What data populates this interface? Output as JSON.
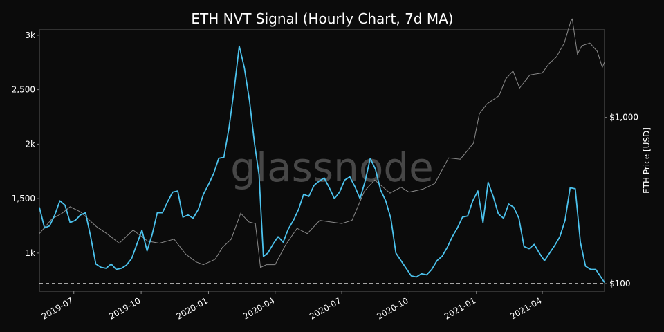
{
  "chart_data": {
    "type": "line",
    "title": "ETH NVT Signal (Hourly Chart, 7d MA)",
    "watermark": "glassnode",
    "xlabel": "",
    "ylabel_left": "",
    "ylabel_right": "ETH Price [USD]",
    "x_range": [
      "2019-05-15",
      "2021-06-25"
    ],
    "x_tick_labels": [
      "2019-07",
      "2019-10",
      "2020-01",
      "2020-04",
      "2020-07",
      "2020-10",
      "2021-01",
      "2021-04"
    ],
    "x_tick_dates": [
      "2019-07-01",
      "2019-10-01",
      "2020-01-01",
      "2020-04-01",
      "2020-07-01",
      "2020-10-01",
      "2021-01-01",
      "2021-04-01"
    ],
    "y_left": {
      "range": [
        650,
        3050
      ],
      "tick_values": [
        1000,
        1500,
        2000,
        2500,
        3000
      ],
      "tick_labels": [
        "1k",
        "1,500",
        "2k",
        "2,500",
        "3k"
      ]
    },
    "y_right": {
      "scale": "log",
      "range": [
        100,
        3000
      ],
      "tick_values": [
        100,
        1000
      ],
      "tick_labels": [
        "$100",
        "$1,000"
      ]
    },
    "threshold_line": {
      "value": 720,
      "style": "dashed",
      "color": "#ffffff"
    },
    "grid": false,
    "colors": {
      "nvt": "#4cc3ee",
      "price": "#8a8a8a",
      "background": "#0b0b0b",
      "axes": "#555555"
    },
    "series": [
      {
        "axis": "left",
        "color": "#4cc3ee",
        "x": [
          "2019-05-15",
          "2019-05-22",
          "2019-05-29",
          "2019-06-05",
          "2019-06-12",
          "2019-06-19",
          "2019-06-26",
          "2019-07-03",
          "2019-07-10",
          "2019-07-17",
          "2019-07-24",
          "2019-07-31",
          "2019-08-07",
          "2019-08-14",
          "2019-08-21",
          "2019-08-28",
          "2019-09-04",
          "2019-09-11",
          "2019-09-18",
          "2019-09-25",
          "2019-10-02",
          "2019-10-09",
          "2019-10-16",
          "2019-10-23",
          "2019-10-30",
          "2019-11-06",
          "2019-11-13",
          "2019-11-20",
          "2019-11-27",
          "2019-12-04",
          "2019-12-11",
          "2019-12-18",
          "2019-12-25",
          "2020-01-01",
          "2020-01-08",
          "2020-01-15",
          "2020-01-22",
          "2020-01-29",
          "2020-02-05",
          "2020-02-12",
          "2020-02-19",
          "2020-02-26",
          "2020-03-04",
          "2020-03-10",
          "2020-03-16",
          "2020-03-22",
          "2020-03-29",
          "2020-04-05",
          "2020-04-12",
          "2020-04-19",
          "2020-04-26",
          "2020-05-03",
          "2020-05-10",
          "2020-05-17",
          "2020-05-24",
          "2020-05-31",
          "2020-06-07",
          "2020-06-14",
          "2020-06-21",
          "2020-06-28",
          "2020-07-05",
          "2020-07-12",
          "2020-07-19",
          "2020-07-26",
          "2020-08-02",
          "2020-08-09",
          "2020-08-16",
          "2020-08-23",
          "2020-08-30",
          "2020-09-06",
          "2020-09-13",
          "2020-09-20",
          "2020-09-27",
          "2020-10-04",
          "2020-10-11",
          "2020-10-18",
          "2020-10-25",
          "2020-11-01",
          "2020-11-08",
          "2020-11-15",
          "2020-11-22",
          "2020-11-29",
          "2020-12-06",
          "2020-12-13",
          "2020-12-20",
          "2020-12-27",
          "2021-01-03",
          "2021-01-10",
          "2021-01-17",
          "2021-01-24",
          "2021-01-31",
          "2021-02-07",
          "2021-02-14",
          "2021-02-21",
          "2021-02-28",
          "2021-03-07",
          "2021-03-14",
          "2021-03-21",
          "2021-03-28",
          "2021-04-04",
          "2021-04-11",
          "2021-04-18",
          "2021-04-25",
          "2021-05-02",
          "2021-05-09",
          "2021-05-16",
          "2021-05-23",
          "2021-05-30",
          "2021-06-06",
          "2021-06-13",
          "2021-06-20",
          "2021-06-25"
        ],
        "values": [
          1420,
          1230,
          1250,
          1350,
          1480,
          1440,
          1280,
          1300,
          1350,
          1370,
          1150,
          900,
          870,
          860,
          900,
          850,
          860,
          890,
          950,
          1080,
          1210,
          1020,
          1170,
          1370,
          1370,
          1470,
          1560,
          1570,
          1330,
          1350,
          1320,
          1400,
          1540,
          1630,
          1730,
          1870,
          1880,
          2150,
          2500,
          2900,
          2700,
          2400,
          2000,
          1720,
          970,
          1000,
          1080,
          1150,
          1100,
          1220,
          1300,
          1400,
          1540,
          1520,
          1620,
          1660,
          1690,
          1600,
          1500,
          1560,
          1670,
          1700,
          1610,
          1500,
          1660,
          1870,
          1770,
          1580,
          1480,
          1320,
          1000,
          930,
          860,
          790,
          780,
          810,
          800,
          850,
          930,
          970,
          1050,
          1150,
          1230,
          1330,
          1340,
          1480,
          1570,
          1280,
          1650,
          1520,
          1360,
          1320,
          1450,
          1420,
          1320,
          1060,
          1040,
          1080,
          1000,
          930,
          1000,
          1070,
          1150,
          1300,
          1600,
          1590,
          1100,
          880,
          850,
          850,
          780,
          730
        ]
      },
      {
        "axis": "right",
        "color": "#8a8a8a",
        "x": [
          "2019-05-15",
          "2019-06-01",
          "2019-06-15",
          "2019-06-26",
          "2019-07-10",
          "2019-08-01",
          "2019-08-15",
          "2019-09-01",
          "2019-09-20",
          "2019-10-10",
          "2019-10-26",
          "2019-11-15",
          "2019-12-01",
          "2019-12-15",
          "2019-12-25",
          "2020-01-10",
          "2020-01-20",
          "2020-02-01",
          "2020-02-14",
          "2020-02-25",
          "2020-03-05",
          "2020-03-12",
          "2020-03-20",
          "2020-04-01",
          "2020-04-15",
          "2020-05-01",
          "2020-05-15",
          "2020-06-01",
          "2020-06-15",
          "2020-07-01",
          "2020-07-15",
          "2020-08-01",
          "2020-08-15",
          "2020-09-05",
          "2020-09-20",
          "2020-10-01",
          "2020-10-20",
          "2020-11-05",
          "2020-11-24",
          "2020-12-10",
          "2020-12-28",
          "2021-01-05",
          "2021-01-15",
          "2021-02-01",
          "2021-02-10",
          "2021-02-20",
          "2021-03-01",
          "2021-03-15",
          "2021-04-01",
          "2021-04-10",
          "2021-04-20",
          "2021-05-01",
          "2021-05-10",
          "2021-05-12",
          "2021-05-19",
          "2021-05-25",
          "2021-06-05",
          "2021-06-15",
          "2021-06-22",
          "2021-06-25"
        ],
        "values": [
          200,
          245,
          265,
          290,
          270,
          220,
          200,
          175,
          210,
          180,
          175,
          185,
          150,
          135,
          130,
          140,
          165,
          185,
          265,
          235,
          230,
          125,
          130,
          130,
          170,
          215,
          200,
          240,
          235,
          230,
          240,
          360,
          420,
          350,
          380,
          355,
          370,
          400,
          570,
          560,
          700,
          1050,
          1200,
          1350,
          1700,
          1900,
          1500,
          1800,
          1850,
          2100,
          2300,
          2800,
          3800,
          3900,
          2400,
          2700,
          2800,
          2500,
          2000,
          2150
        ]
      }
    ]
  }
}
